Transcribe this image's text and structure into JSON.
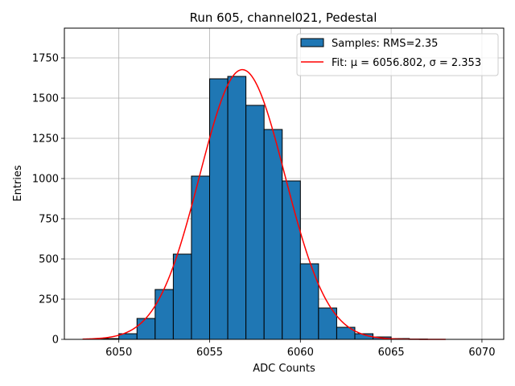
{
  "chart_data": {
    "type": "bar",
    "title": "Run 605, channel021, Pedestal",
    "xlabel": "ADC Counts",
    "ylabel": "Entries",
    "xlim": [
      6047.0,
      6071.2
    ],
    "ylim": [
      0,
      1935
    ],
    "x_ticks": [
      6050,
      6055,
      6060,
      6065,
      6070
    ],
    "y_ticks": [
      0,
      250,
      500,
      750,
      1000,
      1250,
      1500,
      1750
    ],
    "grid": true,
    "legend_position": "top-right",
    "bin_edges": [
      6049,
      6050,
      6051,
      6052,
      6053,
      6054,
      6055,
      6056,
      6057,
      6058,
      6059,
      6060,
      6061,
      6062,
      6063,
      6064,
      6065,
      6066,
      6067
    ],
    "series": [
      {
        "name": "Samples: RMS=2.35",
        "kind": "histogram",
        "color": "#1f77b4",
        "edge_color": "#000000",
        "values": [
          5,
          35,
          130,
          310,
          530,
          1015,
          1620,
          1635,
          1455,
          1305,
          985,
          470,
          195,
          75,
          35,
          15,
          5,
          2
        ]
      },
      {
        "name": "Fit: μ = 6056.802, σ = 2.353",
        "kind": "line",
        "color": "#ff0000",
        "mu": 6056.802,
        "sigma": 2.353,
        "amplitude": 1677,
        "x_range": [
          6048,
          6068
        ]
      }
    ]
  }
}
